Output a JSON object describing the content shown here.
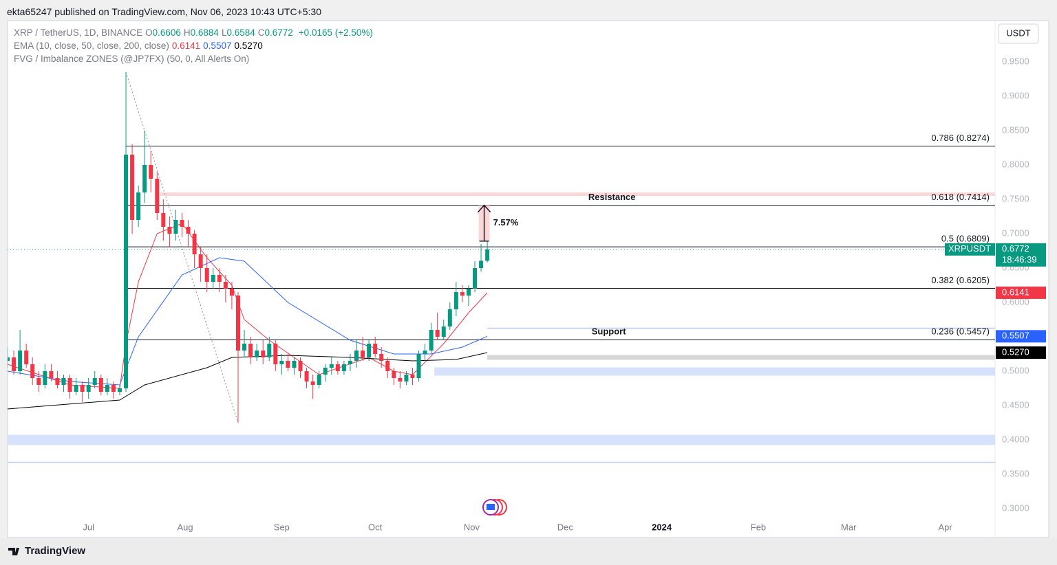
{
  "header": {
    "publisher": "ekta65247 published on TradingView.com, Nov 06, 2023 10:43 UTC+5:30"
  },
  "footer": {
    "brand": "TradingView"
  },
  "chart_data": {
    "type": "candlestick",
    "currency": "USDT",
    "legend": {
      "symbol": "XRP / TetherUS, 1D, BINANCE",
      "ohlc": [
        {
          "key": "O",
          "value": "0.6606"
        },
        {
          "key": "H",
          "value": "0.6884"
        },
        {
          "key": "L",
          "value": "0.6584"
        },
        {
          "key": "C",
          "value": "0.6772"
        }
      ],
      "change": "+0.0165 (+2.50%)",
      "ema": "EMA (10, close, 50, close, 200, close)",
      "fvg": "FVG / Imbalance ZONES (@JP7FX) (50, 0, All Alerts On)"
    },
    "xlim": [
      0,
      317
    ],
    "ylim": [
      0.258,
      1.01
    ],
    "grid": false,
    "xticks": [
      {
        "value": 26,
        "label": "Jul"
      },
      {
        "value": 57,
        "label": "Aug"
      },
      {
        "value": 88,
        "label": "Sep"
      },
      {
        "value": 118,
        "label": "Oct"
      },
      {
        "value": 149,
        "label": "Nov"
      },
      {
        "value": 179,
        "label": "Dec"
      },
      {
        "value": 210,
        "label": "2024",
        "bold": true
      },
      {
        "value": 241,
        "label": "Feb"
      },
      {
        "value": 270,
        "label": "Mar"
      },
      {
        "value": 301,
        "label": "Apr"
      }
    ],
    "yticks": [
      {
        "value": 0.95,
        "label": "0.9500"
      },
      {
        "value": 0.9,
        "label": "0.9000"
      },
      {
        "value": 0.85,
        "label": "0.8500"
      },
      {
        "value": 0.8,
        "label": "0.8000"
      },
      {
        "value": 0.75,
        "label": "0.7500"
      },
      {
        "value": 0.7,
        "label": "0.7000"
      },
      {
        "value": 0.65,
        "label": "0.6500"
      },
      {
        "value": 0.6,
        "label": "0.6000"
      },
      {
        "value": 0.55,
        "label": "0.5500"
      },
      {
        "value": 0.5,
        "label": "0.5000"
      },
      {
        "value": 0.45,
        "label": "0.4500"
      },
      {
        "value": 0.4,
        "label": "0.4000"
      },
      {
        "value": 0.35,
        "label": "0.3500"
      },
      {
        "value": 0.3,
        "label": "0.3000"
      }
    ],
    "up_color": "#089981",
    "down_color": "#f23645",
    "x": [
      0,
      2,
      4,
      6,
      8,
      10,
      12,
      14,
      16,
      18,
      20,
      22,
      24,
      26,
      28,
      30,
      32,
      34,
      36,
      38,
      40,
      42,
      44,
      46,
      48,
      50,
      52,
      54,
      56,
      58,
      60,
      62,
      64,
      66,
      68,
      70,
      72,
      74,
      76,
      78,
      80,
      82,
      84,
      86,
      88,
      90,
      92,
      94,
      96,
      98,
      100,
      102,
      104,
      106,
      108,
      110,
      112,
      114,
      116,
      118,
      120,
      122,
      124,
      126,
      128,
      130,
      132,
      134,
      136,
      138,
      140,
      142,
      144,
      146,
      148,
      150,
      152,
      154
    ],
    "open": [
      0.515,
      0.52,
      0.5,
      0.53,
      0.51,
      0.49,
      0.48,
      0.5,
      0.49,
      0.48,
      0.49,
      0.47,
      0.48,
      0.47,
      0.48,
      0.49,
      0.47,
      0.48,
      0.47,
      0.475,
      0.815,
      0.72,
      0.76,
      0.8,
      0.78,
      0.73,
      0.71,
      0.7,
      0.72,
      0.71,
      0.7,
      0.67,
      0.65,
      0.63,
      0.64,
      0.63,
      0.62,
      0.61,
      0.53,
      0.54,
      0.52,
      0.53,
      0.52,
      0.54,
      0.51,
      0.515,
      0.505,
      0.515,
      0.5,
      0.485,
      0.48,
      0.495,
      0.505,
      0.51,
      0.5,
      0.51,
      0.515,
      0.53,
      0.52,
      0.54,
      0.525,
      0.515,
      0.5,
      0.49,
      0.485,
      0.495,
      0.49,
      0.525,
      0.53,
      0.56,
      0.55,
      0.565,
      0.59,
      0.615,
      0.61,
      0.62,
      0.65,
      0.6606
    ],
    "high": [
      0.535,
      0.53,
      0.56,
      0.54,
      0.52,
      0.5,
      0.51,
      0.51,
      0.5,
      0.495,
      0.495,
      0.49,
      0.485,
      0.49,
      0.5,
      0.495,
      0.49,
      0.485,
      0.48,
      0.935,
      0.83,
      0.77,
      0.85,
      0.82,
      0.79,
      0.75,
      0.725,
      0.735,
      0.73,
      0.72,
      0.705,
      0.68,
      0.67,
      0.65,
      0.65,
      0.64,
      0.63,
      0.615,
      0.56,
      0.55,
      0.54,
      0.545,
      0.55,
      0.545,
      0.525,
      0.525,
      0.52,
      0.52,
      0.505,
      0.495,
      0.5,
      0.51,
      0.52,
      0.515,
      0.515,
      0.525,
      0.545,
      0.55,
      0.545,
      0.55,
      0.535,
      0.52,
      0.505,
      0.5,
      0.5,
      0.505,
      0.53,
      0.54,
      0.57,
      0.585,
      0.575,
      0.6,
      0.63,
      0.625,
      0.625,
      0.66,
      0.685,
      0.6884
    ],
    "low": [
      0.505,
      0.495,
      0.495,
      0.505,
      0.48,
      0.47,
      0.475,
      0.485,
      0.475,
      0.47,
      0.46,
      0.465,
      0.455,
      0.46,
      0.475,
      0.465,
      0.465,
      0.46,
      0.465,
      0.47,
      0.7,
      0.71,
      0.745,
      0.76,
      0.72,
      0.69,
      0.68,
      0.69,
      0.695,
      0.68,
      0.65,
      0.63,
      0.615,
      0.62,
      0.615,
      0.6,
      0.59,
      0.425,
      0.52,
      0.51,
      0.515,
      0.51,
      0.515,
      0.5,
      0.495,
      0.5,
      0.495,
      0.49,
      0.475,
      0.46,
      0.475,
      0.485,
      0.495,
      0.495,
      0.495,
      0.5,
      0.505,
      0.515,
      0.515,
      0.52,
      0.505,
      0.49,
      0.48,
      0.475,
      0.48,
      0.48,
      0.485,
      0.515,
      0.525,
      0.545,
      0.545,
      0.56,
      0.58,
      0.6,
      0.595,
      0.615,
      0.645,
      0.6584
    ],
    "close": [
      0.52,
      0.5,
      0.53,
      0.51,
      0.49,
      0.48,
      0.5,
      0.49,
      0.48,
      0.49,
      0.47,
      0.48,
      0.47,
      0.48,
      0.49,
      0.47,
      0.48,
      0.47,
      0.475,
      0.815,
      0.72,
      0.76,
      0.8,
      0.78,
      0.73,
      0.71,
      0.7,
      0.72,
      0.71,
      0.7,
      0.67,
      0.65,
      0.63,
      0.64,
      0.63,
      0.62,
      0.61,
      0.53,
      0.54,
      0.52,
      0.53,
      0.52,
      0.54,
      0.51,
      0.515,
      0.505,
      0.515,
      0.5,
      0.485,
      0.48,
      0.495,
      0.505,
      0.51,
      0.5,
      0.51,
      0.515,
      0.53,
      0.52,
      0.54,
      0.525,
      0.515,
      0.5,
      0.49,
      0.485,
      0.495,
      0.49,
      0.525,
      0.53,
      0.56,
      0.55,
      0.565,
      0.59,
      0.615,
      0.61,
      0.62,
      0.65,
      0.6606,
      0.6772
    ],
    "ema": [
      {
        "color": "#f23645",
        "x": [
          0,
          20,
          36,
          38,
          42,
          48,
          56,
          64,
          72,
          76,
          84,
          100,
          116,
          124,
          130,
          140,
          148,
          154
        ],
        "values": [
          0.51,
          0.48,
          0.475,
          0.54,
          0.63,
          0.7,
          0.715,
          0.665,
          0.625,
          0.575,
          0.545,
          0.495,
          0.52,
          0.5,
          0.495,
          0.54,
          0.585,
          0.6141
        ],
        "last": {
          "value": 0.6141,
          "label": "0.6141"
        },
        "badge_text": "#ffffff"
      },
      {
        "color": "#2962ff",
        "x": [
          0,
          20,
          36,
          42,
          56,
          68,
          76,
          90,
          110,
          124,
          136,
          146,
          154
        ],
        "values": [
          0.5,
          0.485,
          0.48,
          0.55,
          0.64,
          0.665,
          0.66,
          0.6,
          0.545,
          0.525,
          0.525,
          0.535,
          0.5507
        ],
        "last": {
          "value": 0.5507,
          "label": "0.5507"
        },
        "badge_text": "#ffffff"
      },
      {
        "color": "#000000",
        "x": [
          0,
          36,
          44,
          64,
          72,
          90,
          110,
          130,
          144,
          154
        ],
        "values": [
          0.445,
          0.458,
          0.48,
          0.505,
          0.52,
          0.523,
          0.52,
          0.515,
          0.517,
          0.527
        ],
        "last": {
          "value": 0.527,
          "label": "0.5270"
        },
        "badge_text": "#ffffff"
      }
    ],
    "price_badge": {
      "name": "XRPUSDT",
      "value": 0.6772,
      "label": "0.6772",
      "countdown": "18:46:39"
    },
    "fib_levels": [
      {
        "label": "0.786 (0.8274)",
        "value": 0.8274
      },
      {
        "label": "0.618 (0.7414)",
        "value": 0.7414
      },
      {
        "label": "0.5 (0.6809)",
        "value": 0.6809
      },
      {
        "label": "0.382 (0.6205)",
        "value": 0.6205
      },
      {
        "label": "0.236 (0.5457)",
        "value": 0.5457
      }
    ],
    "fib_start": 38,
    "zones": [
      {
        "from": 49,
        "low": 0.755,
        "high": 0.76,
        "color": "#fdd7d7"
      },
      {
        "from": 137,
        "low": 0.4935,
        "high": 0.5055,
        "color": "#d6e2fb"
      },
      {
        "from": 0,
        "low": 0.3925,
        "high": 0.4075,
        "color": "#d6e2fb"
      },
      {
        "from": 154,
        "low": 0.5165,
        "high": 0.5235,
        "color": "#d7d7d7"
      }
    ],
    "thin_lines": [
      {
        "from": 154,
        "value": 0.5625,
        "color": "#b9c9f5"
      },
      {
        "from": 0,
        "value": 0.3675,
        "color": "#b9c9f5"
      }
    ],
    "annotations": [
      {
        "text": "Resistance",
        "x": 194,
        "value": 0.7414
      },
      {
        "text": "Support",
        "x": 193,
        "value": 0.5457
      }
    ],
    "measure": {
      "x": 153,
      "from": 0.6892,
      "to": 0.7414,
      "label": "7.57%"
    }
  }
}
